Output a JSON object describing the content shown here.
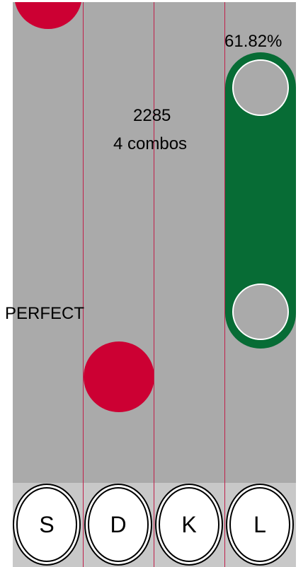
{
  "hud": {
    "score": "2285",
    "combo": "4 combos",
    "accuracy": "61.82%",
    "judgement": "PERFECT"
  },
  "keys": [
    {
      "label": "S"
    },
    {
      "label": "D"
    },
    {
      "label": "K"
    },
    {
      "label": "L"
    }
  ],
  "colors": {
    "playfield": "#aaaaaa",
    "keybar": "#c8c8c8",
    "tap_note": "#cc0033",
    "hold_note": "#076c35",
    "lane_divider": "#c0204a"
  }
}
